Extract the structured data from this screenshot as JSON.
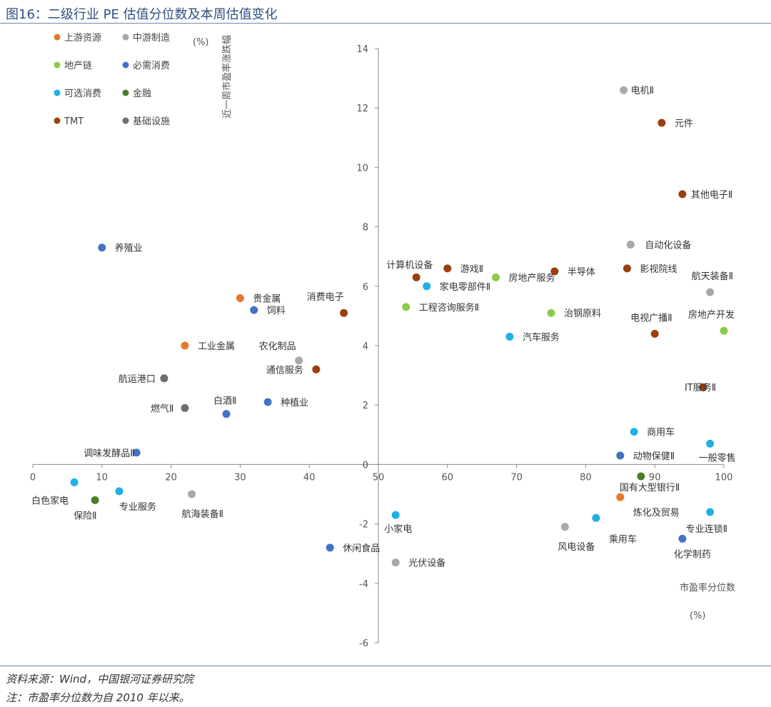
{
  "header": {
    "title": "图16：二级行业 PE 估值分位数及本周估值变化"
  },
  "footer": {
    "source": "资料来源：Wind，中国银河证券研究院",
    "note": "注：市盈率分位数为自 2010 年以来。"
  },
  "chart_data": {
    "type": "scatter",
    "xlabel": "市盈率分位数",
    "xunit": "(%)",
    "ylabel": "近一周市盈率涨跌幅",
    "yunit": "(%)",
    "xlim": [
      0,
      100
    ],
    "ylim": [
      -6,
      14
    ],
    "xticks": [
      0,
      10,
      20,
      30,
      40,
      50,
      60,
      70,
      80,
      90,
      100
    ],
    "yticks": [
      -6,
      -4,
      -2,
      0,
      2,
      4,
      6,
      8,
      10,
      12,
      14
    ],
    "legend": [
      {
        "name": "上游资源",
        "color": "#E8772E"
      },
      {
        "name": "中游制造",
        "color": "#A9A9A9"
      },
      {
        "name": "地产链",
        "color": "#8CCB4A"
      },
      {
        "name": "必需消费",
        "color": "#4472C4"
      },
      {
        "name": "可选消费",
        "color": "#1FB0E6"
      },
      {
        "name": "金融",
        "color": "#4B7F2A"
      },
      {
        "name": "TMT",
        "color": "#9C3F0E"
      },
      {
        "name": "基础设施",
        "color": "#6F6F6F"
      }
    ],
    "points": [
      {
        "label": "电机Ⅱ",
        "x": 85.5,
        "y": 12.6,
        "group": 1,
        "lx": 10,
        "ly": 5
      },
      {
        "label": "元件",
        "x": 91,
        "y": 11.5,
        "group": 6,
        "lx": 18,
        "ly": 5
      },
      {
        "label": "其他电子Ⅱ",
        "x": 94,
        "y": 9.1,
        "group": 6,
        "lx": 12,
        "ly": 5
      },
      {
        "label": "自动化设备",
        "x": 86.5,
        "y": 7.4,
        "group": 1,
        "lx": 20,
        "ly": 5
      },
      {
        "label": "养殖业",
        "x": 10,
        "y": 7.3,
        "group": 3,
        "lx": 18,
        "ly": 5
      },
      {
        "label": "计算机设备",
        "x": 55.5,
        "y": 6.3,
        "group": 6,
        "lx": -42,
        "ly": -13
      },
      {
        "label": "游戏Ⅱ",
        "x": 60,
        "y": 6.6,
        "group": 6,
        "lx": 18,
        "ly": 5
      },
      {
        "label": "半导体",
        "x": 75.5,
        "y": 6.5,
        "group": 6,
        "lx": 18,
        "ly": 5
      },
      {
        "label": "影视院线",
        "x": 86,
        "y": 6.6,
        "group": 6,
        "lx": 18,
        "ly": 5
      },
      {
        "label": "房地产服务",
        "x": 67,
        "y": 6.3,
        "group": 2,
        "lx": 18,
        "ly": 5
      },
      {
        "label": "家电零部件Ⅱ",
        "x": 57,
        "y": 6.0,
        "group": 4,
        "lx": 18,
        "ly": 5
      },
      {
        "label": "航天装备Ⅱ",
        "x": 98,
        "y": 5.8,
        "group": 1,
        "lx": -26,
        "ly": -18
      },
      {
        "label": "贵金属",
        "x": 30,
        "y": 5.6,
        "group": 0,
        "lx": 18,
        "ly": 5
      },
      {
        "label": "消费电子",
        "x": 45,
        "y": 5.1,
        "group": 6,
        "lx": -52,
        "ly": -18
      },
      {
        "label": "饲料",
        "x": 32,
        "y": 5.2,
        "group": 3,
        "lx": 18,
        "ly": 5
      },
      {
        "label": "工程咨询服务Ⅱ",
        "x": 54,
        "y": 5.3,
        "group": 2,
        "lx": 18,
        "ly": 5
      },
      {
        "label": "治钢原料",
        "x": 75,
        "y": 5.1,
        "group": 2,
        "lx": 18,
        "ly": 5
      },
      {
        "label": "工业金属",
        "x": 22,
        "y": 4.0,
        "group": 0,
        "lx": 18,
        "ly": 5
      },
      {
        "label": "农化制品",
        "x": 38.5,
        "y": 3.5,
        "group": 1,
        "lx": -56,
        "ly": -16
      },
      {
        "label": "汽车服务",
        "x": 69,
        "y": 4.3,
        "group": 4,
        "lx": 18,
        "ly": 5
      },
      {
        "label": "电视广播Ⅱ",
        "x": 90,
        "y": 4.4,
        "group": 6,
        "lx": -34,
        "ly": -18
      },
      {
        "label": "房地产开发",
        "x": 100,
        "y": 4.5,
        "group": 2,
        "lx": -50,
        "ly": -18
      },
      {
        "label": "航运港口",
        "x": 19,
        "y": 2.9,
        "group": 7,
        "lx": -64,
        "ly": 5
      },
      {
        "label": "通信服务",
        "x": 41,
        "y": 3.2,
        "group": 6,
        "lx": -70,
        "ly": 5
      },
      {
        "label": "IT服务Ⅱ",
        "x": 97,
        "y": 2.6,
        "group": 6,
        "lx": -26,
        "ly": 5
      },
      {
        "label": "燃气Ⅱ",
        "x": 22,
        "y": 1.9,
        "group": 7,
        "lx": -48,
        "ly": 5
      },
      {
        "label": "白酒Ⅱ",
        "x": 28,
        "y": 1.7,
        "group": 3,
        "lx": -18,
        "ly": -14
      },
      {
        "label": "种植业",
        "x": 34,
        "y": 2.1,
        "group": 3,
        "lx": 18,
        "ly": 5
      },
      {
        "label": "调味发酵品Ⅱ",
        "x": 15,
        "y": 0.4,
        "group": 3,
        "lx": -74,
        "ly": 5
      },
      {
        "label": "动物保健Ⅱ",
        "x": 85,
        "y": 0.3,
        "group": 3,
        "lx": 18,
        "ly": 5
      },
      {
        "label": "一般零售",
        "x": 98,
        "y": 0.7,
        "group": 4,
        "lx": -16,
        "ly": 24
      },
      {
        "label": "商用车",
        "x": 87,
        "y": 1.1,
        "group": 4,
        "lx": 18,
        "ly": 5
      },
      {
        "label": "白色家电",
        "x": 6,
        "y": -0.6,
        "group": 4,
        "lx": -60,
        "ly": 30
      },
      {
        "label": "保险Ⅱ",
        "x": 9,
        "y": -1.2,
        "group": 5,
        "lx": -30,
        "ly": 26
      },
      {
        "label": "专业服务",
        "x": 12.5,
        "y": -0.9,
        "group": 4,
        "lx": 0,
        "ly": 26
      },
      {
        "label": "航海装备Ⅱ",
        "x": 23,
        "y": -1.0,
        "group": 1,
        "lx": -14,
        "ly": 32
      },
      {
        "label": "休闲食品",
        "x": 43,
        "y": -2.8,
        "group": 3,
        "lx": 18,
        "ly": 5
      },
      {
        "label": "光伏设备",
        "x": 52.5,
        "y": -3.3,
        "group": 1,
        "lx": 18,
        "ly": 5
      },
      {
        "label": "小家电",
        "x": 52.5,
        "y": -1.7,
        "group": 4,
        "lx": -16,
        "ly": 24
      },
      {
        "label": "风电设备",
        "x": 77,
        "y": -2.1,
        "group": 1,
        "lx": -10,
        "ly": 32
      },
      {
        "label": "乘用车",
        "x": 81.5,
        "y": -1.8,
        "group": 4,
        "lx": 18,
        "ly": 34
      },
      {
        "label": "化学制药",
        "x": 94,
        "y": -2.5,
        "group": 3,
        "lx": -12,
        "ly": 26
      },
      {
        "label": "专业连锁Ⅱ",
        "x": 98,
        "y": -1.6,
        "group": 4,
        "lx": -34,
        "ly": 28
      },
      {
        "label": "炼化及贸易",
        "x": 85,
        "y": -1.1,
        "group": 0,
        "lx": 18,
        "ly": 26
      },
      {
        "label": "国有大型银行Ⅱ",
        "x": 88,
        "y": -0.4,
        "group": 5,
        "lx": -30,
        "ly": 20
      }
    ]
  }
}
